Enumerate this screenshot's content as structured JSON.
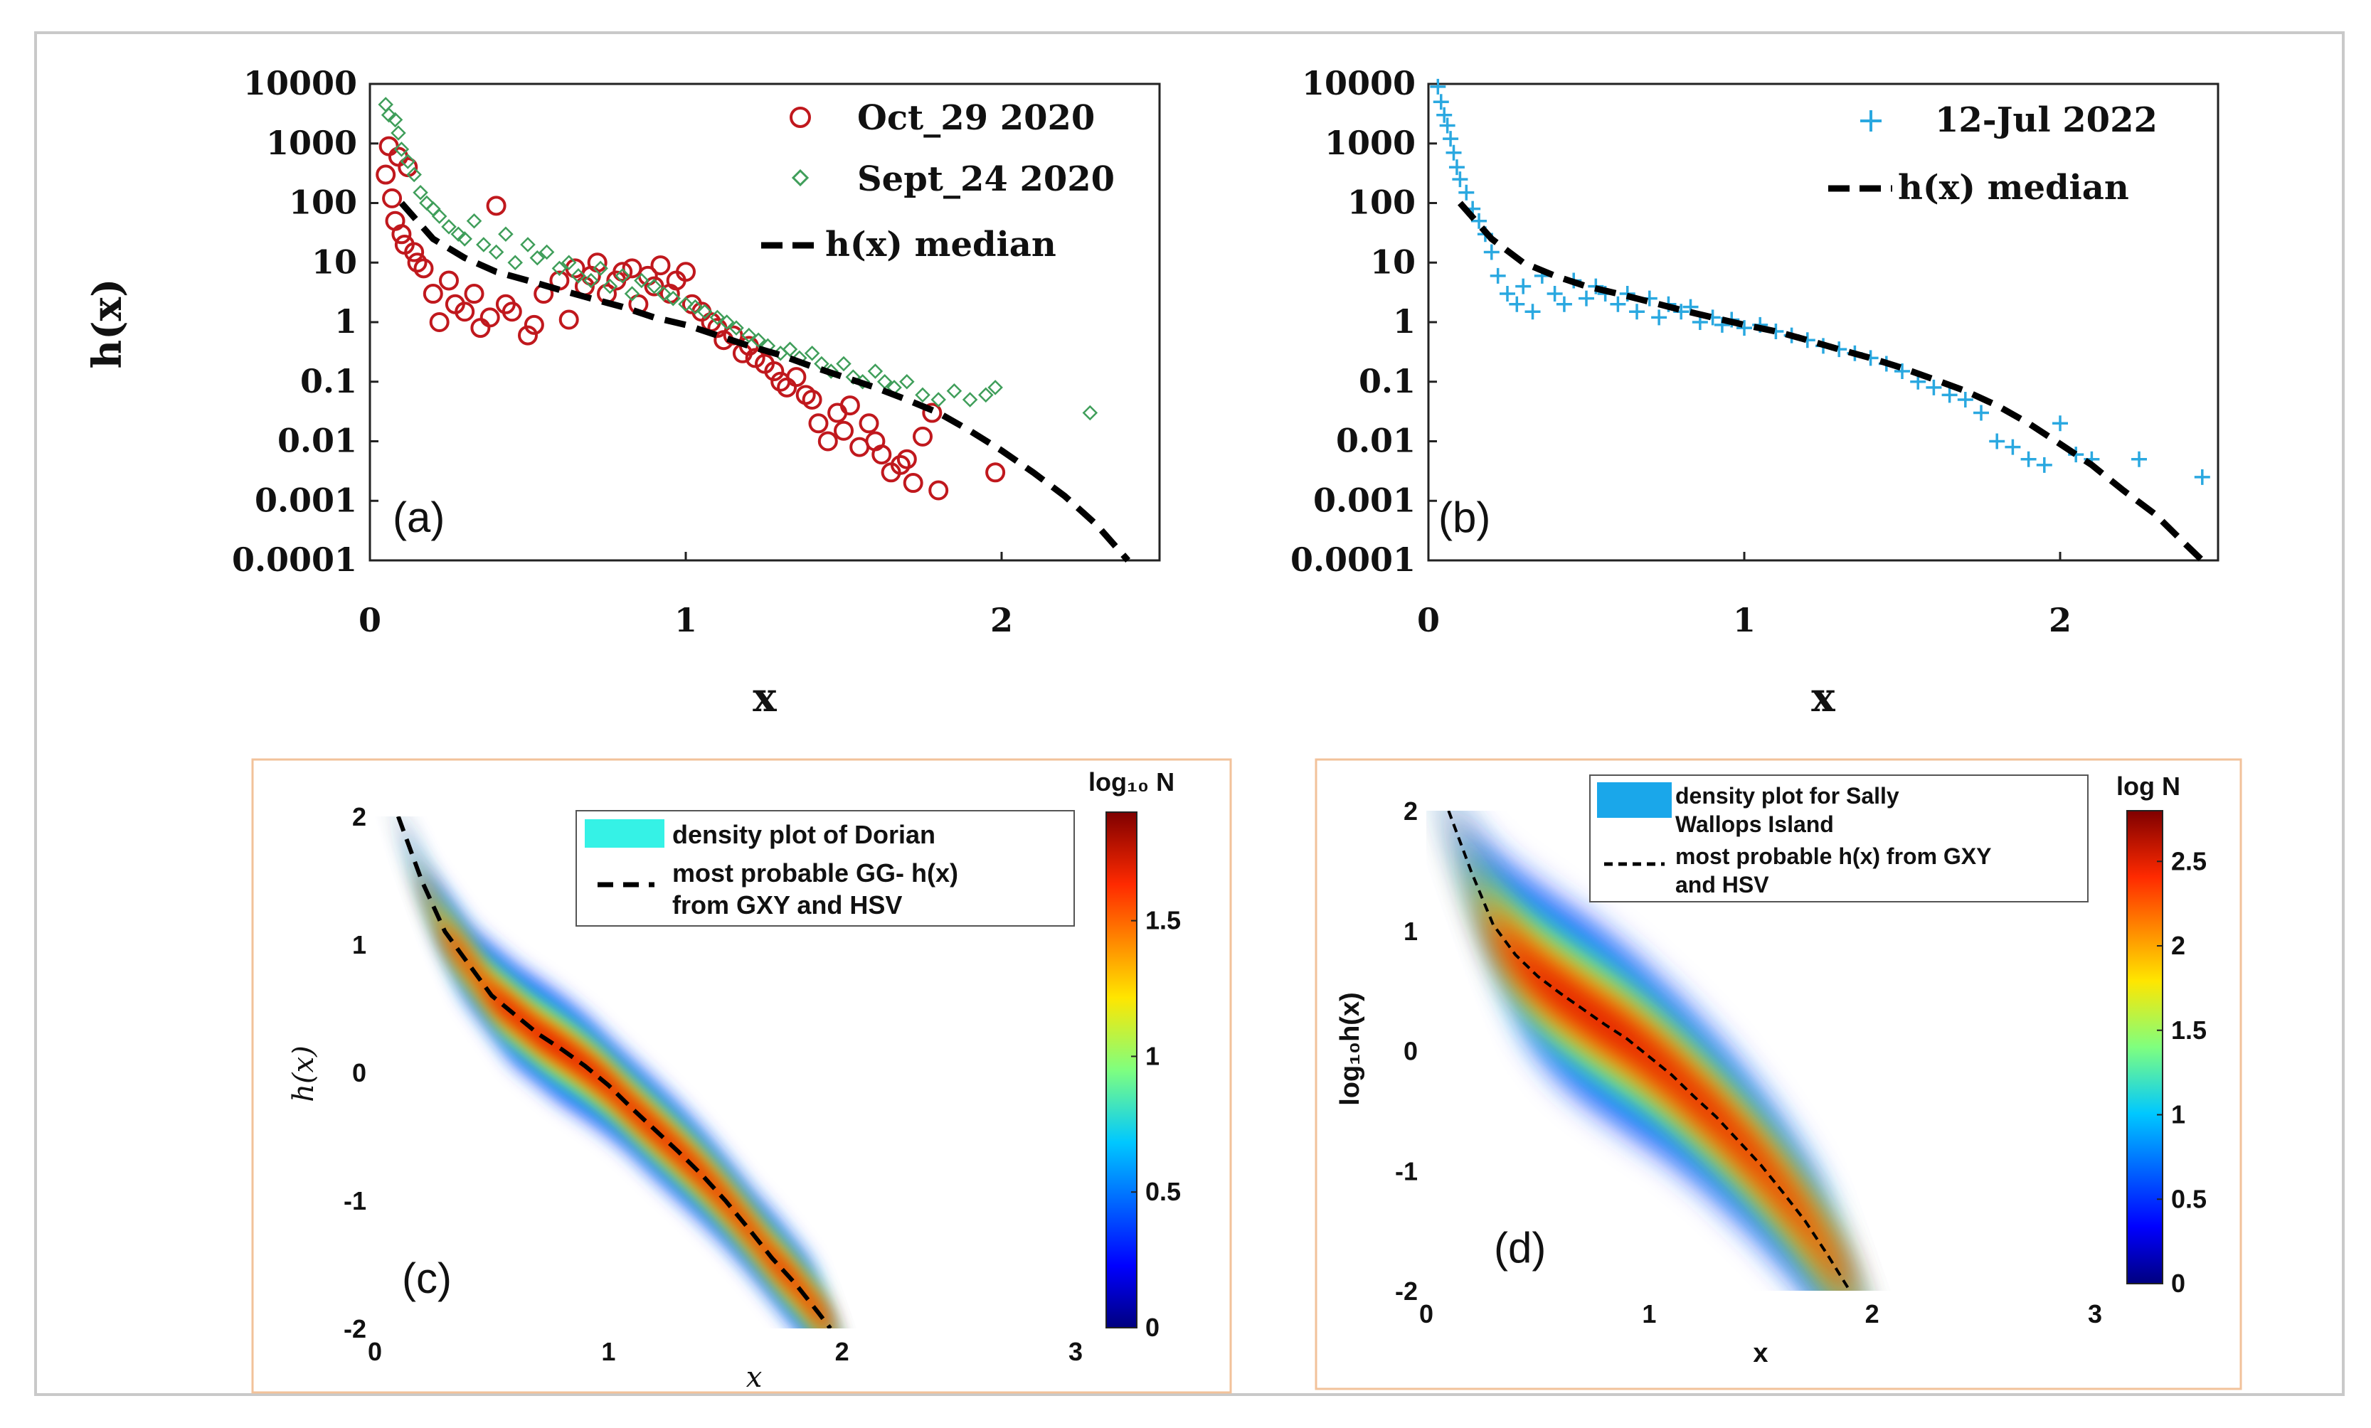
{
  "colors": {
    "oct": "#c0181d",
    "sept": "#3f9e5a",
    "jul": "#2aa8e0",
    "median": "#000000",
    "frame": "#c9c9c9",
    "panel_frame": "#f2c29a"
  },
  "chart_data": [
    {
      "id": "a",
      "type": "scatter",
      "panel_label": "(a)",
      "xlabel": "x",
      "ylabel": "h(x)",
      "xlim": [
        0,
        2.5
      ],
      "yscale": "log",
      "ylim": [
        0.0001,
        10000
      ],
      "x_ticks": [
        "0",
        "1",
        "2"
      ],
      "y_ticks": [
        "0.0001",
        "0.001",
        "0.01",
        "0.1",
        "1",
        "10",
        "100",
        "1000",
        "10000"
      ],
      "legend": [
        "Oct_29 2020",
        "Sept_24 2020",
        "h(x) median"
      ],
      "series": [
        {
          "name": "Oct_29 2020",
          "marker": "circle",
          "color": "#c0181d",
          "x": [
            0.05,
            0.06,
            0.07,
            0.08,
            0.09,
            0.1,
            0.11,
            0.12,
            0.14,
            0.15,
            0.17,
            0.2,
            0.22,
            0.25,
            0.27,
            0.3,
            0.33,
            0.35,
            0.38,
            0.4,
            0.43,
            0.45,
            0.5,
            0.52,
            0.55,
            0.6,
            0.63,
            0.65,
            0.68,
            0.7,
            0.72,
            0.75,
            0.78,
            0.8,
            0.83,
            0.85,
            0.88,
            0.9,
            0.92,
            0.95,
            0.97,
            1.0,
            1.02,
            1.05,
            1.08,
            1.1,
            1.12,
            1.15,
            1.18,
            1.2,
            1.22,
            1.25,
            1.28,
            1.3,
            1.32,
            1.35,
            1.38,
            1.4,
            1.42,
            1.45,
            1.48,
            1.5,
            1.52,
            1.55,
            1.58,
            1.6,
            1.62,
            1.65,
            1.68,
            1.7,
            1.72,
            1.75,
            1.78,
            1.8,
            1.98
          ],
          "y": [
            300,
            900,
            120,
            50,
            600,
            30,
            20,
            400,
            15,
            10,
            8,
            3,
            1,
            5,
            2,
            1.5,
            3,
            0.8,
            1.2,
            90,
            2,
            1.5,
            0.6,
            0.9,
            3,
            5,
            1.1,
            8,
            4,
            6,
            10,
            3,
            5,
            7,
            8,
            2,
            6,
            4,
            9,
            3,
            5,
            7,
            2,
            1.5,
            1,
            0.8,
            0.5,
            0.6,
            0.3,
            0.4,
            0.25,
            0.2,
            0.15,
            0.1,
            0.08,
            0.12,
            0.06,
            0.05,
            0.02,
            0.01,
            0.03,
            0.015,
            0.04,
            0.008,
            0.02,
            0.01,
            0.006,
            0.003,
            0.004,
            0.005,
            0.002,
            0.012,
            0.03,
            0.0015,
            0.003
          ]
        },
        {
          "name": "Sept_24 2020",
          "marker": "diamond",
          "color": "#3f9e5a",
          "x": [
            0.05,
            0.06,
            0.08,
            0.09,
            0.1,
            0.12,
            0.14,
            0.16,
            0.18,
            0.2,
            0.22,
            0.25,
            0.28,
            0.3,
            0.33,
            0.36,
            0.4,
            0.43,
            0.46,
            0.5,
            0.53,
            0.56,
            0.6,
            0.63,
            0.66,
            0.7,
            0.73,
            0.76,
            0.8,
            0.83,
            0.86,
            0.9,
            0.93,
            0.96,
            1.0,
            1.03,
            1.06,
            1.1,
            1.13,
            1.16,
            1.2,
            1.23,
            1.26,
            1.3,
            1.33,
            1.36,
            1.4,
            1.43,
            1.46,
            1.5,
            1.53,
            1.56,
            1.6,
            1.63,
            1.66,
            1.7,
            1.75,
            1.8,
            1.85,
            1.9,
            1.95,
            1.98,
            2.28
          ],
          "y": [
            4500,
            3000,
            2500,
            1500,
            800,
            500,
            300,
            150,
            100,
            80,
            60,
            40,
            30,
            25,
            50,
            20,
            15,
            30,
            10,
            20,
            12,
            15,
            8,
            10,
            6,
            5,
            8,
            4,
            6,
            3,
            5,
            4,
            3,
            2.5,
            2,
            1.8,
            1.5,
            1.2,
            1,
            0.8,
            0.6,
            0.5,
            0.4,
            0.3,
            0.35,
            0.25,
            0.3,
            0.2,
            0.15,
            0.2,
            0.12,
            0.1,
            0.15,
            0.1,
            0.08,
            0.1,
            0.06,
            0.05,
            0.07,
            0.05,
            0.06,
            0.08,
            0.03
          ]
        },
        {
          "name": "h(x) median",
          "style": "dashed",
          "color": "#000000",
          "x": [
            0.1,
            0.2,
            0.3,
            0.4,
            0.5,
            0.6,
            0.7,
            0.8,
            0.9,
            1.0,
            1.1,
            1.2,
            1.3,
            1.4,
            1.5,
            1.6,
            1.7,
            1.8,
            1.9,
            2.0,
            2.1,
            2.2,
            2.3,
            2.4
          ],
          "y": [
            100,
            25,
            12,
            7,
            5,
            3.5,
            2.5,
            1.8,
            1.2,
            0.9,
            0.6,
            0.4,
            0.28,
            0.18,
            0.12,
            0.08,
            0.05,
            0.03,
            0.015,
            0.007,
            0.003,
            0.0012,
            0.0004,
            0.0001
          ]
        }
      ]
    },
    {
      "id": "b",
      "type": "scatter",
      "panel_label": "(b)",
      "xlabel": "x",
      "xlim": [
        0,
        2.5
      ],
      "yscale": "log",
      "ylim": [
        0.0001,
        10000
      ],
      "x_ticks": [
        "0",
        "1",
        "2"
      ],
      "y_ticks": [
        "0.0001",
        "0.001",
        "0.01",
        "0.1",
        "1",
        "10",
        "100",
        "1000",
        "10000"
      ],
      "legend": [
        "12-Jul 2022",
        "h(x) median"
      ],
      "series": [
        {
          "name": "12-Jul 2022",
          "marker": "plus",
          "color": "#2aa8e0",
          "x": [
            0.03,
            0.04,
            0.05,
            0.06,
            0.07,
            0.08,
            0.09,
            0.1,
            0.12,
            0.14,
            0.16,
            0.18,
            0.2,
            0.22,
            0.25,
            0.28,
            0.3,
            0.33,
            0.36,
            0.4,
            0.43,
            0.46,
            0.5,
            0.53,
            0.56,
            0.6,
            0.63,
            0.66,
            0.7,
            0.73,
            0.76,
            0.8,
            0.83,
            0.86,
            0.9,
            0.93,
            0.96,
            1.0,
            1.05,
            1.1,
            1.15,
            1.2,
            1.25,
            1.3,
            1.35,
            1.4,
            1.45,
            1.5,
            1.55,
            1.6,
            1.65,
            1.7,
            1.75,
            1.8,
            1.85,
            1.9,
            1.95,
            2.0,
            2.05,
            2.1,
            2.25,
            2.45
          ],
          "y": [
            9000,
            5000,
            3000,
            2000,
            1200,
            700,
            400,
            250,
            150,
            80,
            50,
            30,
            15,
            6,
            3,
            2,
            4,
            1.5,
            6,
            3,
            2,
            5,
            2.5,
            4,
            3,
            2,
            3,
            1.5,
            2.5,
            1.2,
            2,
            1.5,
            1.8,
            1,
            1.2,
            0.9,
            1.1,
            0.8,
            0.9,
            0.7,
            0.6,
            0.5,
            0.4,
            0.35,
            0.3,
            0.25,
            0.2,
            0.15,
            0.1,
            0.08,
            0.06,
            0.05,
            0.03,
            0.01,
            0.008,
            0.005,
            0.004,
            0.02,
            0.006,
            0.005,
            0.005,
            0.0025
          ]
        },
        {
          "name": "h(x) median",
          "style": "dashed",
          "color": "#000000",
          "x": [
            0.1,
            0.2,
            0.3,
            0.4,
            0.5,
            0.6,
            0.7,
            0.8,
            0.9,
            1.0,
            1.1,
            1.2,
            1.3,
            1.4,
            1.5,
            1.6,
            1.7,
            1.8,
            1.9,
            2.0,
            2.1,
            2.2,
            2.3,
            2.4,
            2.45
          ],
          "y": [
            100,
            25,
            10,
            6,
            4,
            3,
            2.2,
            1.6,
            1.2,
            0.9,
            0.7,
            0.5,
            0.35,
            0.25,
            0.17,
            0.11,
            0.07,
            0.04,
            0.02,
            0.009,
            0.004,
            0.0015,
            0.0006,
            0.00018,
            0.0001
          ]
        }
      ]
    },
    {
      "id": "c",
      "type": "heatmap",
      "panel_label": "(c)",
      "xlabel": "x",
      "ylabel": "h(x)",
      "xlim": [
        0,
        3
      ],
      "ylim": [
        -2,
        2
      ],
      "x_ticks": [
        "0",
        "1",
        "2",
        "3"
      ],
      "y_ticks": [
        "-2",
        "-1",
        "0",
        "1",
        "2"
      ],
      "colorbar_title": "log₁₀ N",
      "colorbar_range": [
        0,
        1.9
      ],
      "colorbar_ticks": [
        "0",
        "0.5",
        "1",
        "1.5"
      ],
      "legend": [
        "density plot of Dorian",
        "most probable GG- h(x)",
        "from GXY and HSV"
      ],
      "curve": {
        "style": "dashed",
        "color": "#000000",
        "x": [
          0.1,
          0.2,
          0.3,
          0.4,
          0.5,
          0.6,
          0.7,
          0.8,
          0.9,
          1.0,
          1.1,
          1.2,
          1.3,
          1.4,
          1.5,
          1.6,
          1.7,
          1.8,
          1.9,
          1.95
        ],
        "y": [
          2.0,
          1.5,
          1.1,
          0.85,
          0.6,
          0.45,
          0.3,
          0.18,
          0.05,
          -0.1,
          -0.28,
          -0.45,
          -0.62,
          -0.8,
          -1.0,
          -1.22,
          -1.45,
          -1.65,
          -1.88,
          -2.0
        ]
      }
    },
    {
      "id": "d",
      "type": "heatmap",
      "panel_label": "(d)",
      "xlabel": "x",
      "ylabel": "log₁₀h(x)",
      "xlim": [
        0,
        3
      ],
      "ylim": [
        -2,
        2
      ],
      "x_ticks": [
        "0",
        "1",
        "2",
        "3"
      ],
      "y_ticks": [
        "-2",
        "-1",
        "0",
        "1",
        "2"
      ],
      "colorbar_title": "log N",
      "colorbar_range": [
        0,
        2.8
      ],
      "colorbar_ticks": [
        "0",
        "0.5",
        "1",
        "1.5",
        "2",
        "2.5"
      ],
      "legend": [
        "density plot for Sally",
        "Wallops Island",
        "most probable h(x) from GXY",
        "and HSV"
      ],
      "curve": {
        "style": "dashed",
        "color": "#000000",
        "x": [
          0.1,
          0.2,
          0.3,
          0.4,
          0.5,
          0.6,
          0.7,
          0.8,
          0.9,
          1.0,
          1.1,
          1.2,
          1.3,
          1.4,
          1.5,
          1.6,
          1.7,
          1.8,
          1.9
        ],
        "y": [
          2.0,
          1.5,
          1.05,
          0.8,
          0.62,
          0.48,
          0.35,
          0.22,
          0.1,
          -0.05,
          -0.2,
          -0.38,
          -0.55,
          -0.75,
          -0.95,
          -1.18,
          -1.42,
          -1.7,
          -2.0
        ]
      }
    }
  ]
}
